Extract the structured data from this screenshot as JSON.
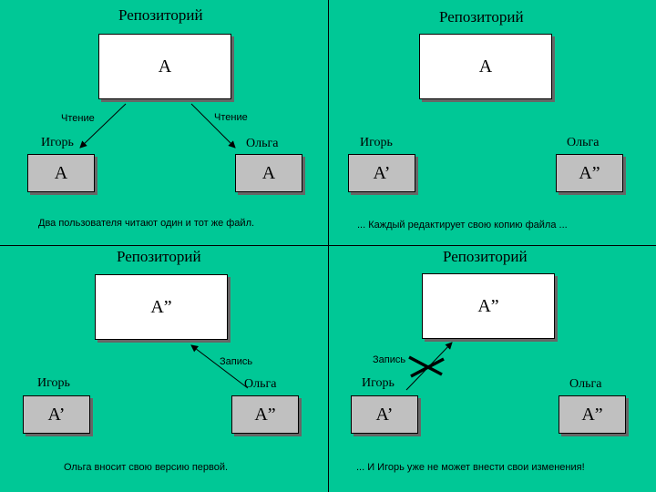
{
  "repository_title": "Репозиторий",
  "users": {
    "igor": "Игорь",
    "olga": "Ольга"
  },
  "panels": [
    {
      "repo": "A",
      "igor_file": "A",
      "olga_file": "A",
      "arrow_label": "Чтение",
      "caption": "Два пользователя читают один и тот же файл."
    },
    {
      "repo": "A",
      "igor_file": "A’",
      "olga_file": "A”",
      "caption": "... Каждый редактирует свою копию файла ..."
    },
    {
      "repo": "A”",
      "igor_file": "A’",
      "olga_file": "A”",
      "arrow_label": "Запись",
      "caption": "Ольга вносит свою версию первой."
    },
    {
      "repo": "A”",
      "igor_file": "A’",
      "olga_file": "A”",
      "arrow_label": "Запись",
      "caption": "... И Игорь уже не может внести свои изменения!"
    }
  ]
}
